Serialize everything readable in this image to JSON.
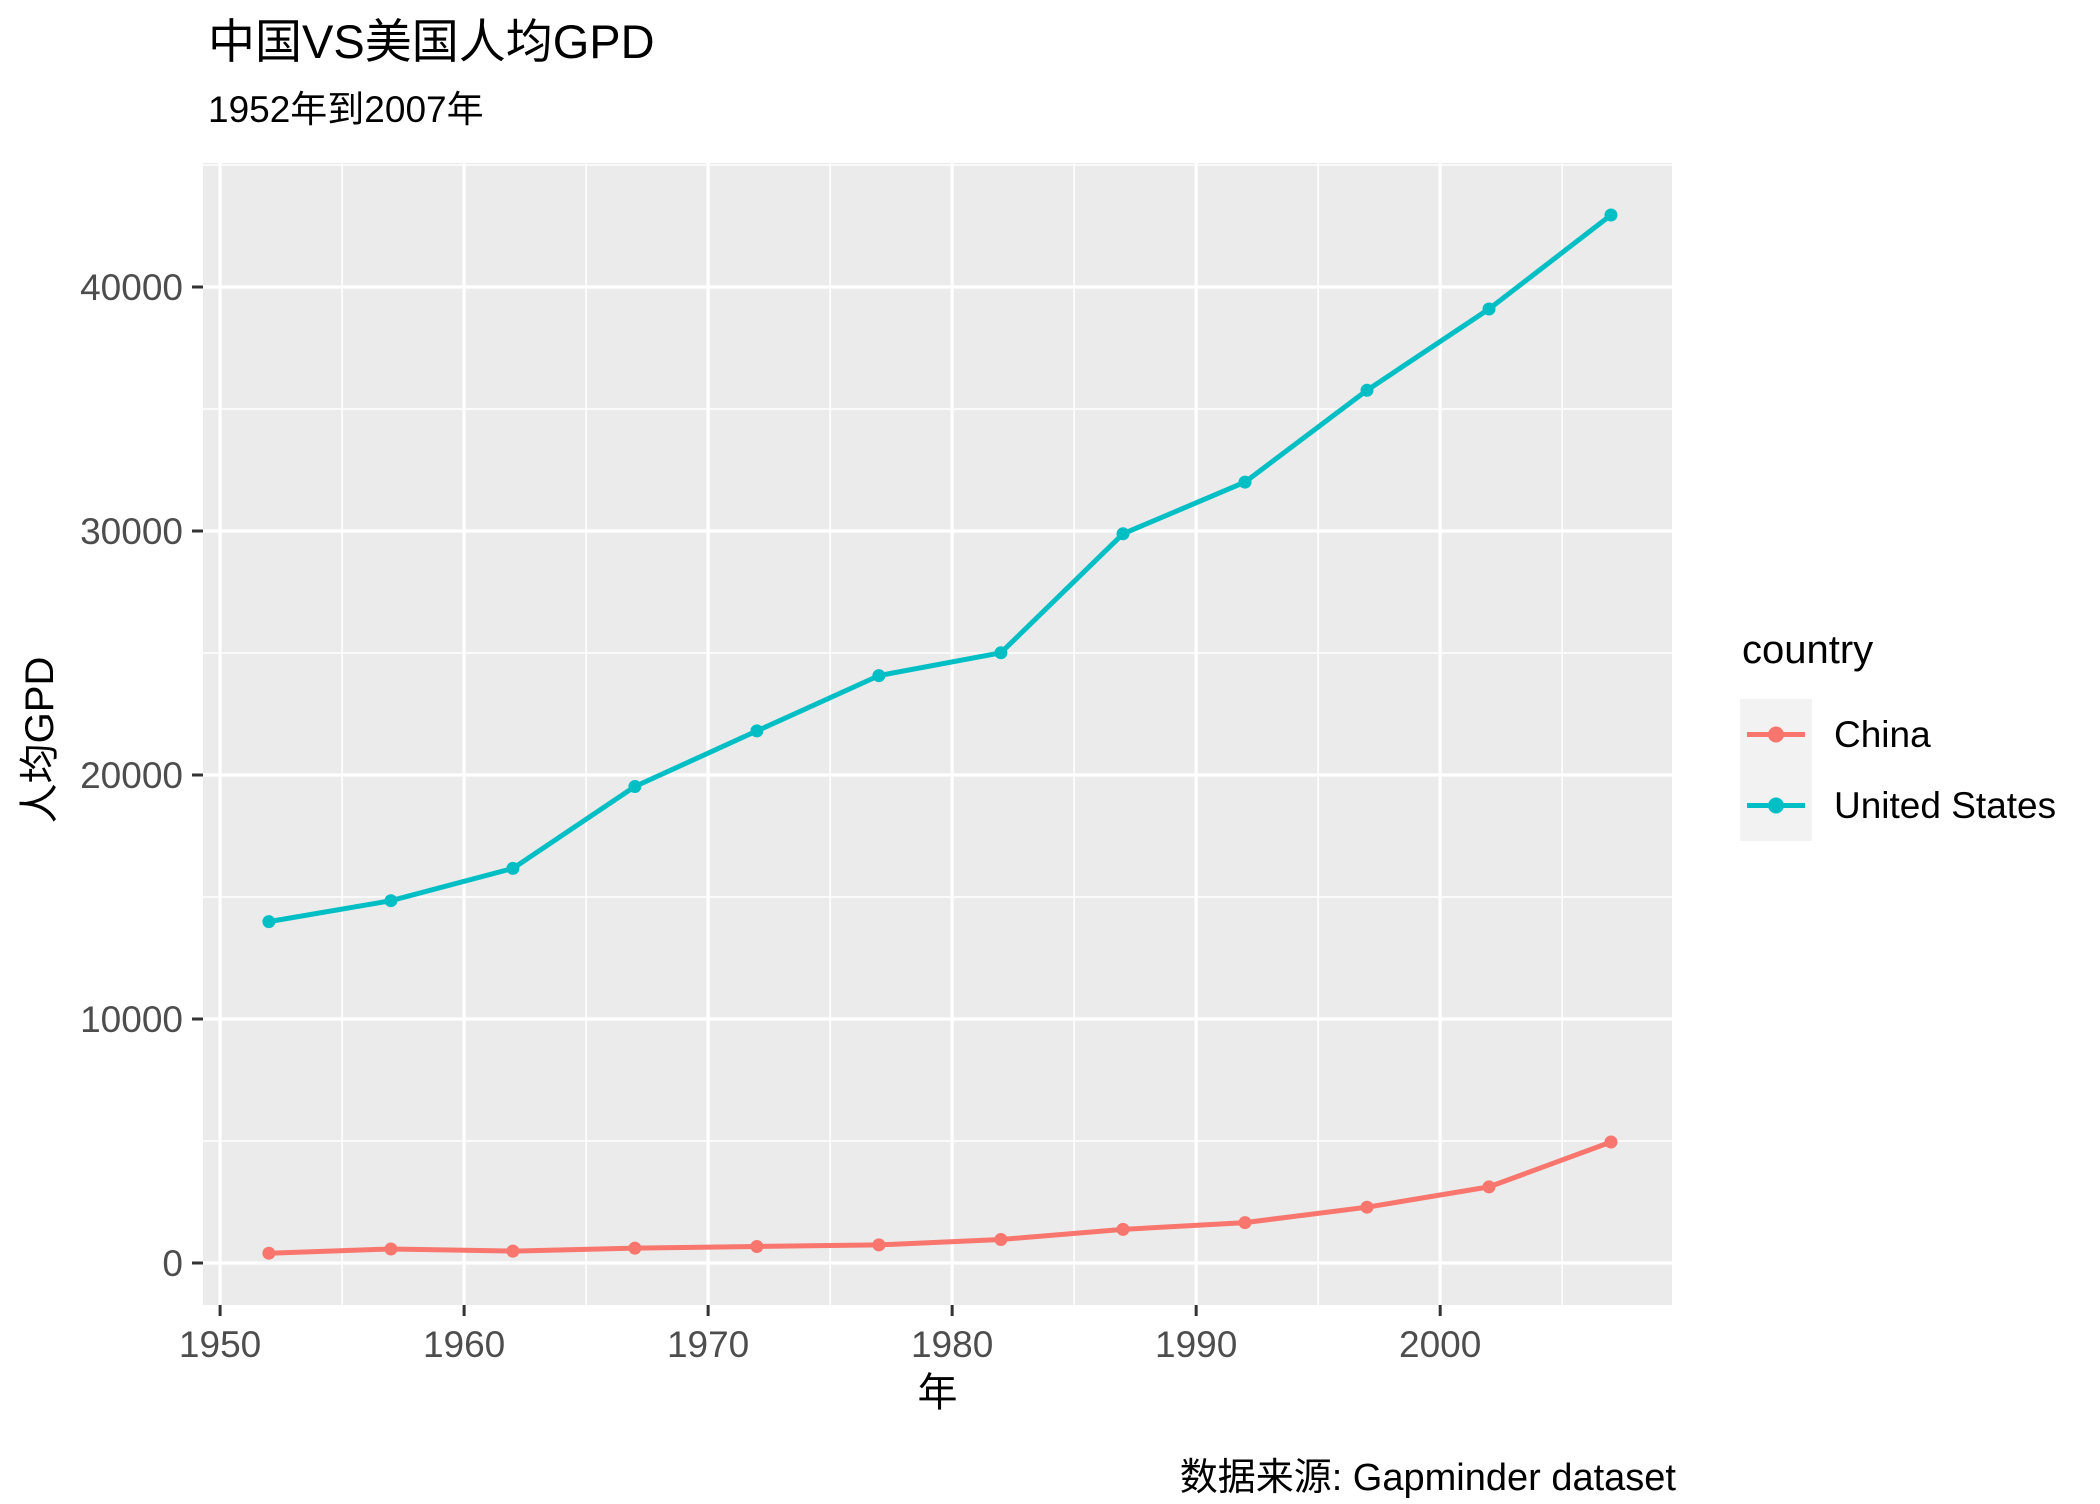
{
  "header": {
    "title": "中国VS美国人均GPD",
    "subtitle": "1952年到2007年"
  },
  "caption": "数据来源: Gapminder dataset",
  "axes": {
    "x_title": "年",
    "y_title": "人均GPD"
  },
  "legend": {
    "title": "country",
    "items": [
      {
        "label": "China",
        "color": "#F8766D"
      },
      {
        "label": "United States",
        "color": "#00BFC4"
      }
    ]
  },
  "chart_data": {
    "type": "line",
    "title": "中国VS美国人均GPD",
    "subtitle": "1952年到2007年",
    "xlabel": "年",
    "ylabel": "人均GPD",
    "caption": "数据来源: Gapminder dataset",
    "x": [
      1952,
      1957,
      1962,
      1967,
      1972,
      1977,
      1982,
      1987,
      1992,
      1997,
      2002,
      2007
    ],
    "series": [
      {
        "name": "China",
        "color": "#F8766D",
        "values": [
          400.4,
          576.0,
          487.7,
          612.7,
          676.9,
          741.2,
          962.4,
          1378.9,
          1655.8,
          2289.2,
          3119.3,
          4959.1
        ]
      },
      {
        "name": "United States",
        "color": "#00BFC4",
        "values": [
          13990.5,
          14847.1,
          16173.1,
          19530.4,
          21806.0,
          24072.6,
          25009.6,
          29884.4,
          32003.9,
          35767.4,
          39097.1,
          42951.7
        ]
      }
    ],
    "x_ticks": [
      1950,
      1960,
      1970,
      1980,
      1990,
      2000
    ],
    "y_ticks": [
      0,
      10000,
      20000,
      30000,
      40000
    ],
    "xlim": [
      1949.3,
      2009.5
    ],
    "ylim": [
      -1721,
      45082
    ],
    "grid": true,
    "minor_grid": true,
    "legend_title": "country",
    "legend_position": "right",
    "panel_bg": "#EBEBEB",
    "grid_color": "#FFFFFF",
    "tick_label_color": "#4D4D4D",
    "tick_mark_color": "#333333"
  }
}
